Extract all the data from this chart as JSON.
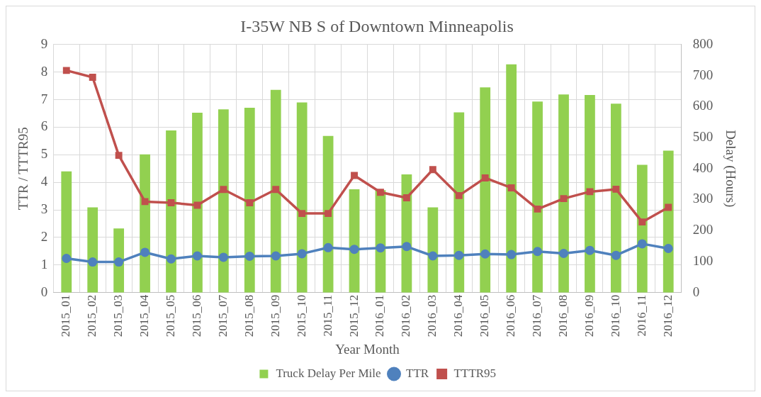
{
  "chart_data": {
    "type": "line",
    "title": "I-35W NB S of Downtown Minneapolis",
    "xlabel": "Year Month",
    "ylabel": "TTR / TTTR95",
    "y2label": "Delay (Hours)",
    "categories": [
      "2015_01",
      "2015_02",
      "2015_03",
      "2015_04",
      "2015_05",
      "2015_06",
      "2015_07",
      "2015_08",
      "2015_09",
      "2015_10",
      "2015_11",
      "2015_12",
      "2016_01",
      "2016_02",
      "2016_03",
      "2016_04",
      "2016_05",
      "2016_06",
      "2016_07",
      "2016_08",
      "2016_09",
      "2016_10",
      "2016_11",
      "2016_12"
    ],
    "series": [
      {
        "name": "Truck Delay Per Mile",
        "type": "bar",
        "axis": "y2",
        "color": "#92d050",
        "values": [
          391,
          275,
          207,
          446,
          523,
          580,
          591,
          596,
          654,
          613,
          505,
          333,
          330,
          381,
          275,
          581,
          662,
          736,
          616,
          639,
          637,
          609,
          412,
          458
        ]
      },
      {
        "name": "TTR",
        "marker": "circle",
        "color": "#4f81bd",
        "values": [
          1.24,
          1.11,
          1.11,
          1.46,
          1.22,
          1.33,
          1.28,
          1.32,
          1.33,
          1.41,
          1.63,
          1.57,
          1.62,
          1.67,
          1.33,
          1.35,
          1.4,
          1.38,
          1.49,
          1.42,
          1.53,
          1.35,
          1.77,
          1.6
        ]
      },
      {
        "name": "TTTR95",
        "marker": "square",
        "color": "#c0504d",
        "values": [
          8.06,
          7.81,
          4.98,
          3.3,
          3.26,
          3.17,
          3.74,
          3.26,
          3.74,
          2.87,
          2.87,
          4.25,
          3.64,
          3.44,
          4.46,
          3.52,
          4.16,
          3.8,
          3.03,
          3.41,
          3.66,
          3.75,
          2.56,
          3.09
        ]
      }
    ],
    "ylim": [
      0,
      9
    ],
    "yticks": [
      0,
      1,
      2,
      3,
      4,
      5,
      6,
      7,
      8,
      9
    ],
    "y2lim": [
      0,
      800
    ],
    "y2ticks": [
      0,
      100,
      200,
      300,
      400,
      500,
      600,
      700,
      800
    ],
    "grid": true,
    "legend": "bottom"
  }
}
